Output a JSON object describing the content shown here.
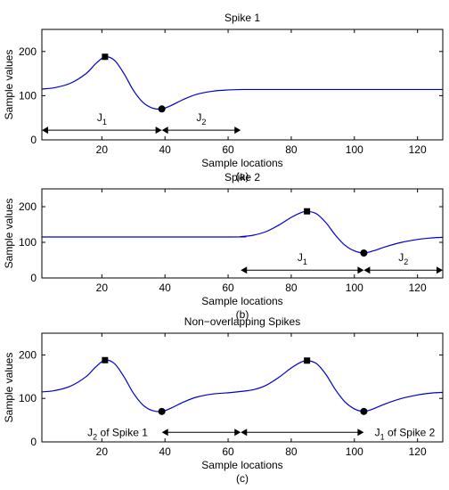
{
  "chart_data": [
    {
      "type": "line",
      "title": "Spike 1",
      "xlabel": "Sample locations",
      "ylabel": "Sample values",
      "caption": "(a)",
      "xlim": [
        1,
        128
      ],
      "ylim": [
        0,
        250
      ],
      "xticks": [
        20,
        40,
        60,
        80,
        100,
        120
      ],
      "yticks": [
        0,
        100,
        200
      ],
      "line_color": "#0000cc",
      "series": [
        {
          "x": [
            1,
            5,
            10,
            15,
            18,
            21,
            24,
            27,
            30,
            33,
            36,
            39,
            42,
            46,
            50,
            55,
            60,
            65,
            70,
            128
          ],
          "y": [
            115,
            118,
            128,
            150,
            172,
            188,
            180,
            150,
            112,
            85,
            72,
            70,
            78,
            92,
            103,
            110,
            113,
            114,
            114,
            114
          ]
        }
      ],
      "markers": [
        {
          "x": 21,
          "y": 188,
          "shape": "square"
        },
        {
          "x": 39,
          "y": 70,
          "shape": "circle"
        }
      ],
      "arrows": [
        {
          "x1": 1,
          "x2": 39,
          "y": 22,
          "label": "J",
          "sub": "1"
        },
        {
          "x1": 39,
          "x2": 64,
          "y": 22,
          "label": "J",
          "sub": "2"
        }
      ]
    },
    {
      "type": "line",
      "title": "Spike 2",
      "xlabel": "Sample locations",
      "ylabel": "Sample values",
      "caption": "(b)",
      "xlim": [
        1,
        128
      ],
      "ylim": [
        0,
        250
      ],
      "xticks": [
        20,
        40,
        60,
        80,
        100,
        120
      ],
      "yticks": [
        0,
        100,
        200
      ],
      "line_color": "#0000cc",
      "series": [
        {
          "x": [
            1,
            60,
            64,
            68,
            72,
            76,
            80,
            83,
            85,
            88,
            91,
            94,
            97,
            100,
            103,
            106,
            110,
            115,
            120,
            124,
            128
          ],
          "y": [
            115,
            115,
            116,
            120,
            130,
            148,
            170,
            183,
            187,
            180,
            155,
            120,
            92,
            76,
            70,
            76,
            88,
            100,
            108,
            112,
            114
          ]
        }
      ],
      "markers": [
        {
          "x": 85,
          "y": 187,
          "shape": "square"
        },
        {
          "x": 103,
          "y": 70,
          "shape": "circle"
        }
      ],
      "arrows": [
        {
          "x1": 64,
          "x2": 103,
          "y": 22,
          "label": "J",
          "sub": "1"
        },
        {
          "x1": 103,
          "x2": 128,
          "y": 22,
          "label": "J",
          "sub": "2"
        }
      ]
    },
    {
      "type": "line",
      "title": "Non−overlapping Spikes",
      "xlabel": "Sample locations",
      "ylabel": "Sample values",
      "caption": "(c)",
      "xlim": [
        1,
        128
      ],
      "ylim": [
        0,
        250
      ],
      "xticks": [
        20,
        40,
        60,
        80,
        100,
        120
      ],
      "yticks": [
        0,
        100,
        200
      ],
      "line_color": "#0000cc",
      "series": [
        {
          "x": [
            1,
            5,
            10,
            15,
            18,
            21,
            24,
            27,
            30,
            33,
            36,
            39,
            42,
            46,
            50,
            55,
            60,
            64,
            68,
            72,
            76,
            80,
            83,
            85,
            88,
            91,
            94,
            97,
            100,
            103,
            106,
            110,
            115,
            120,
            124,
            128
          ],
          "y": [
            115,
            118,
            128,
            150,
            172,
            188,
            180,
            150,
            112,
            85,
            72,
            70,
            78,
            92,
            103,
            110,
            113,
            116,
            120,
            130,
            148,
            170,
            183,
            187,
            180,
            155,
            120,
            92,
            76,
            70,
            76,
            88,
            100,
            108,
            112,
            114
          ]
        }
      ],
      "markers": [
        {
          "x": 21,
          "y": 188,
          "shape": "square"
        },
        {
          "x": 39,
          "y": 70,
          "shape": "circle"
        },
        {
          "x": 85,
          "y": 187,
          "shape": "square"
        },
        {
          "x": 103,
          "y": 70,
          "shape": "circle"
        }
      ],
      "arrows": [
        {
          "x1": 39,
          "x2": 64,
          "y": 22,
          "label": "",
          "sub": ""
        },
        {
          "x1": 64,
          "x2": 103,
          "y": 22,
          "label": "",
          "sub": ""
        }
      ],
      "annotations": [
        {
          "x": 25,
          "y": 22,
          "label": "J",
          "sub": "2",
          "rest": " of Spike 1"
        },
        {
          "x": 116,
          "y": 22,
          "label": "J",
          "sub": "1",
          "rest": " of Spike 2"
        }
      ]
    }
  ]
}
